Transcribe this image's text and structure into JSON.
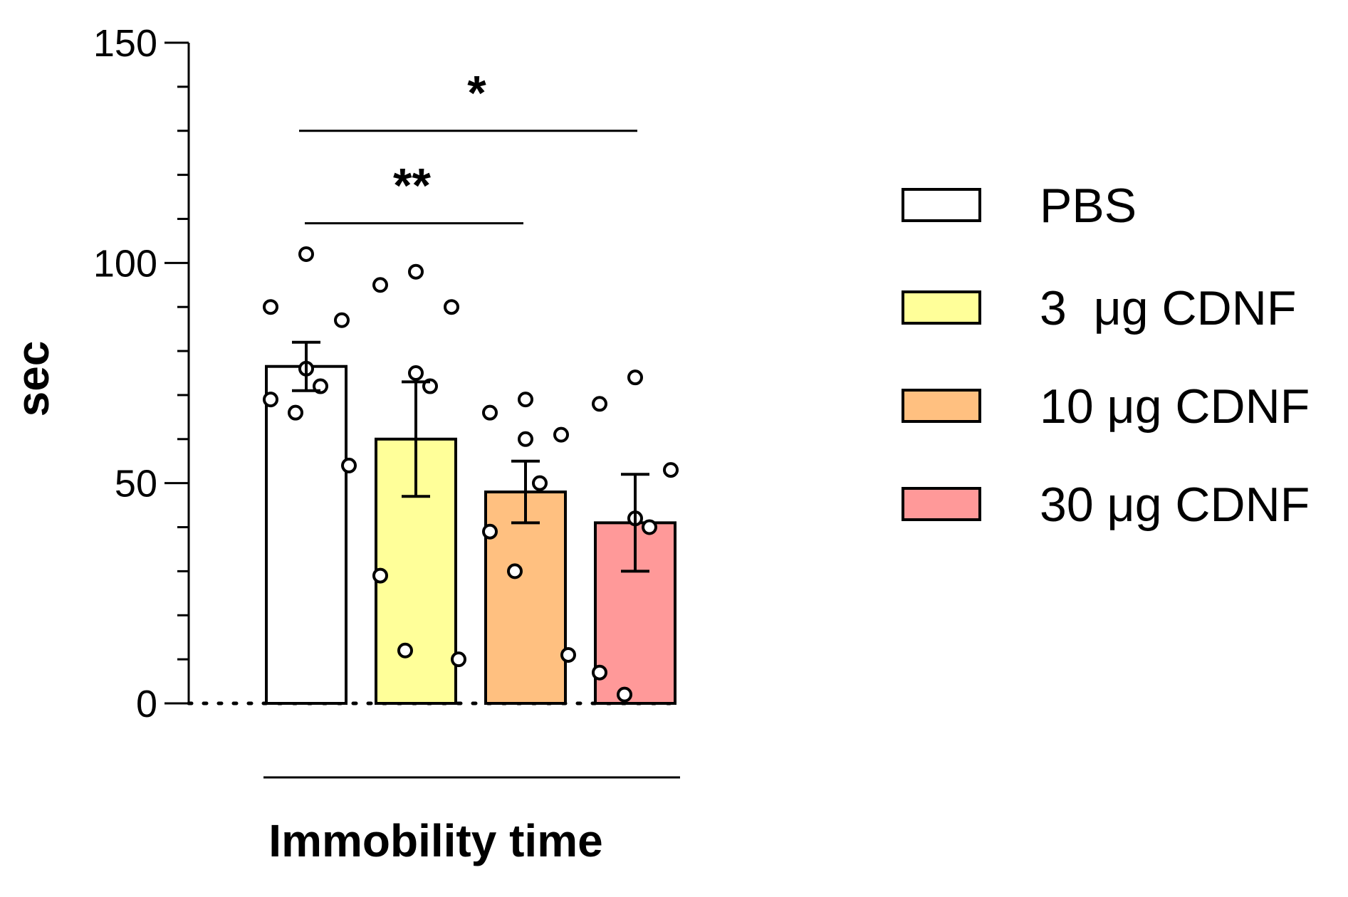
{
  "chart_data": {
    "type": "bar",
    "title": "",
    "ylabel": "sec",
    "xlabel": "Immobility time",
    "ylim": [
      0,
      150
    ],
    "yticks": [
      0,
      50,
      100,
      150
    ],
    "yminor_step": 10,
    "grid": false,
    "legend_position": "right",
    "categories": [
      "PBS",
      "3  μg CDNF",
      "10 μg CDNF",
      "30 μg CDNF"
    ],
    "series": [
      {
        "name": "PBS",
        "color": "#ffffff",
        "mean": 76.5,
        "sem": 5.5,
        "points": [
          102,
          90,
          87,
          76,
          72,
          69,
          66,
          54
        ]
      },
      {
        "name": "3  μg CDNF",
        "color": "#ffff99",
        "mean": 60,
        "sem": 13,
        "points": [
          98,
          95,
          90,
          75,
          72,
          29,
          12,
          10
        ]
      },
      {
        "name": "10 μg CDNF",
        "color": "#ffc080",
        "mean": 48,
        "sem": 7,
        "points": [
          69,
          66,
          61,
          60,
          50,
          39,
          30,
          11
        ]
      },
      {
        "name": "30 μg CDNF",
        "color": "#ff9999",
        "mean": 41,
        "sem": 11,
        "points": [
          74,
          68,
          53,
          42,
          40,
          7,
          2
        ]
      }
    ],
    "significance": [
      {
        "from": 0,
        "to": 2,
        "y": 109,
        "label": "**"
      },
      {
        "from": 0,
        "to": 3,
        "y": 130,
        "label": "*"
      }
    ]
  }
}
